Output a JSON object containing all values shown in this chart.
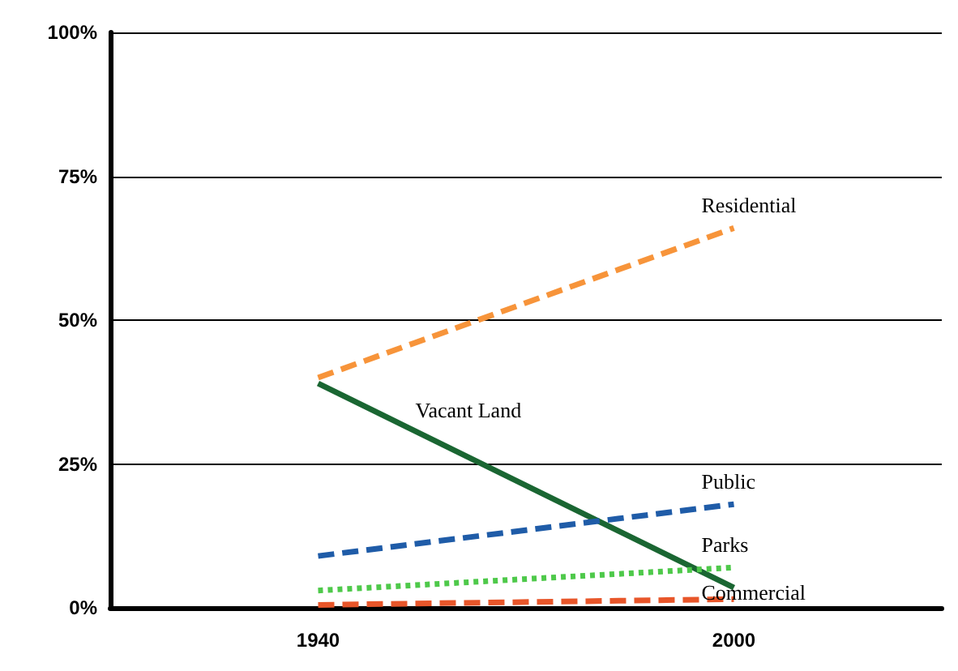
{
  "chart_data": {
    "type": "line",
    "categories": [
      "1940",
      "2000"
    ],
    "series": [
      {
        "name": "Residential",
        "color": "#f7943a",
        "values": [
          40,
          66
        ],
        "line_style": "dashed"
      },
      {
        "name": "Vacant Land",
        "color": "#1a6632",
        "values": [
          39,
          3.5
        ],
        "line_style": "solid"
      },
      {
        "name": "Public",
        "color": "#1f5ca8",
        "values": [
          9,
          18
        ],
        "line_style": "dashed"
      },
      {
        "name": "Parks",
        "color": "#4ec94a",
        "values": [
          3,
          7
        ],
        "line_style": "dotted"
      },
      {
        "name": "Commercial",
        "color": "#e8562a",
        "values": [
          0.5,
          1.5
        ],
        "line_style": "dashed"
      }
    ],
    "ylim": [
      0,
      100
    ],
    "yticks": [
      {
        "value": 0,
        "label": "0%"
      },
      {
        "value": 25,
        "label": "25%"
      },
      {
        "value": 50,
        "label": "50%"
      },
      {
        "value": 75,
        "label": "75%"
      },
      {
        "value": 100,
        "label": "100%"
      }
    ],
    "grid": "y",
    "marker": "none"
  }
}
